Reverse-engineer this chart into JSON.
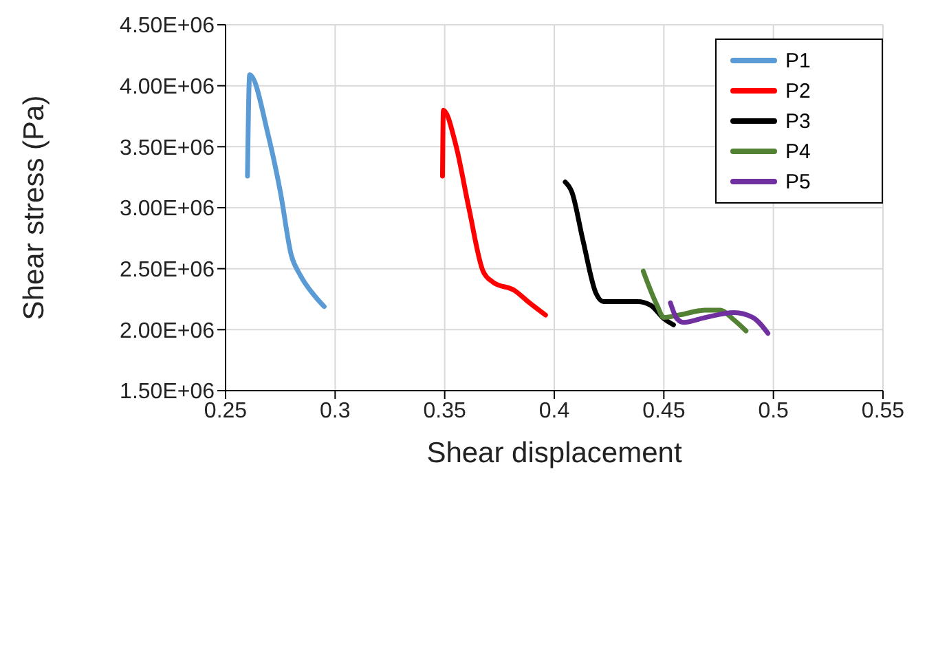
{
  "chart_data": {
    "type": "line",
    "xlabel": "Shear displacement",
    "ylabel": "Shear stress (Pa)",
    "xlim": [
      0.25,
      0.55
    ],
    "xticks": [
      0.25,
      0.3,
      0.35,
      0.4,
      0.45,
      0.5,
      0.55
    ],
    "ylim": [
      1500000,
      4500000
    ],
    "yticks": [
      {
        "value": 1500000,
        "label": "1.50E+06"
      },
      {
        "value": 2000000,
        "label": "2.00E+06"
      },
      {
        "value": 2500000,
        "label": "2.50E+06"
      },
      {
        "value": 3000000,
        "label": "3.00E+06"
      },
      {
        "value": 3500000,
        "label": "3.50E+06"
      },
      {
        "value": 4000000,
        "label": "4.00E+06"
      },
      {
        "value": 4500000,
        "label": "4.50E+06"
      }
    ],
    "grid": true,
    "legend": "top right",
    "marker": "none",
    "line_style": "solid",
    "series": [
      {
        "name": "P1",
        "color": "#5b9bd5",
        "x": [
          0.26,
          0.261,
          0.2694,
          0.275,
          0.28,
          0.284,
          0.291,
          0.295
        ],
        "values": [
          3260000,
          4090000,
          3600000,
          3130000,
          2610000,
          2450000,
          2270000,
          2190000
        ]
      },
      {
        "name": "P2",
        "color": "#ff0000",
        "x": [
          0.349,
          0.3494,
          0.355,
          0.361,
          0.3675,
          0.372,
          0.382,
          0.388,
          0.396
        ],
        "values": [
          3260000,
          3800000,
          3520000,
          3000000,
          2480000,
          2390000,
          2320000,
          2230000,
          2120000
        ]
      },
      {
        "name": "P3",
        "color": "#000000",
        "x": [
          0.405,
          0.408,
          0.413,
          0.419,
          0.4225,
          0.438,
          0.444,
          0.45,
          0.4544
        ],
        "values": [
          3210000,
          3130000,
          2740000,
          2300000,
          2230000,
          2230000,
          2200000,
          2090000,
          2040000
        ]
      },
      {
        "name": "P4",
        "color": "#548235",
        "x": [
          0.4406,
          0.4469,
          0.45,
          0.457,
          0.469,
          0.4756,
          0.482,
          0.4875
        ],
        "values": [
          2480000,
          2200000,
          2100000,
          2120000,
          2160000,
          2160000,
          2080000,
          1990000
        ]
      },
      {
        "name": "P5",
        "color": "#7030a0",
        "x": [
          0.453,
          0.456,
          0.459,
          0.469,
          0.482,
          0.4906,
          0.4975
        ],
        "values": [
          2220000,
          2090000,
          2060000,
          2100000,
          2140000,
          2100000,
          1970000
        ]
      }
    ]
  }
}
